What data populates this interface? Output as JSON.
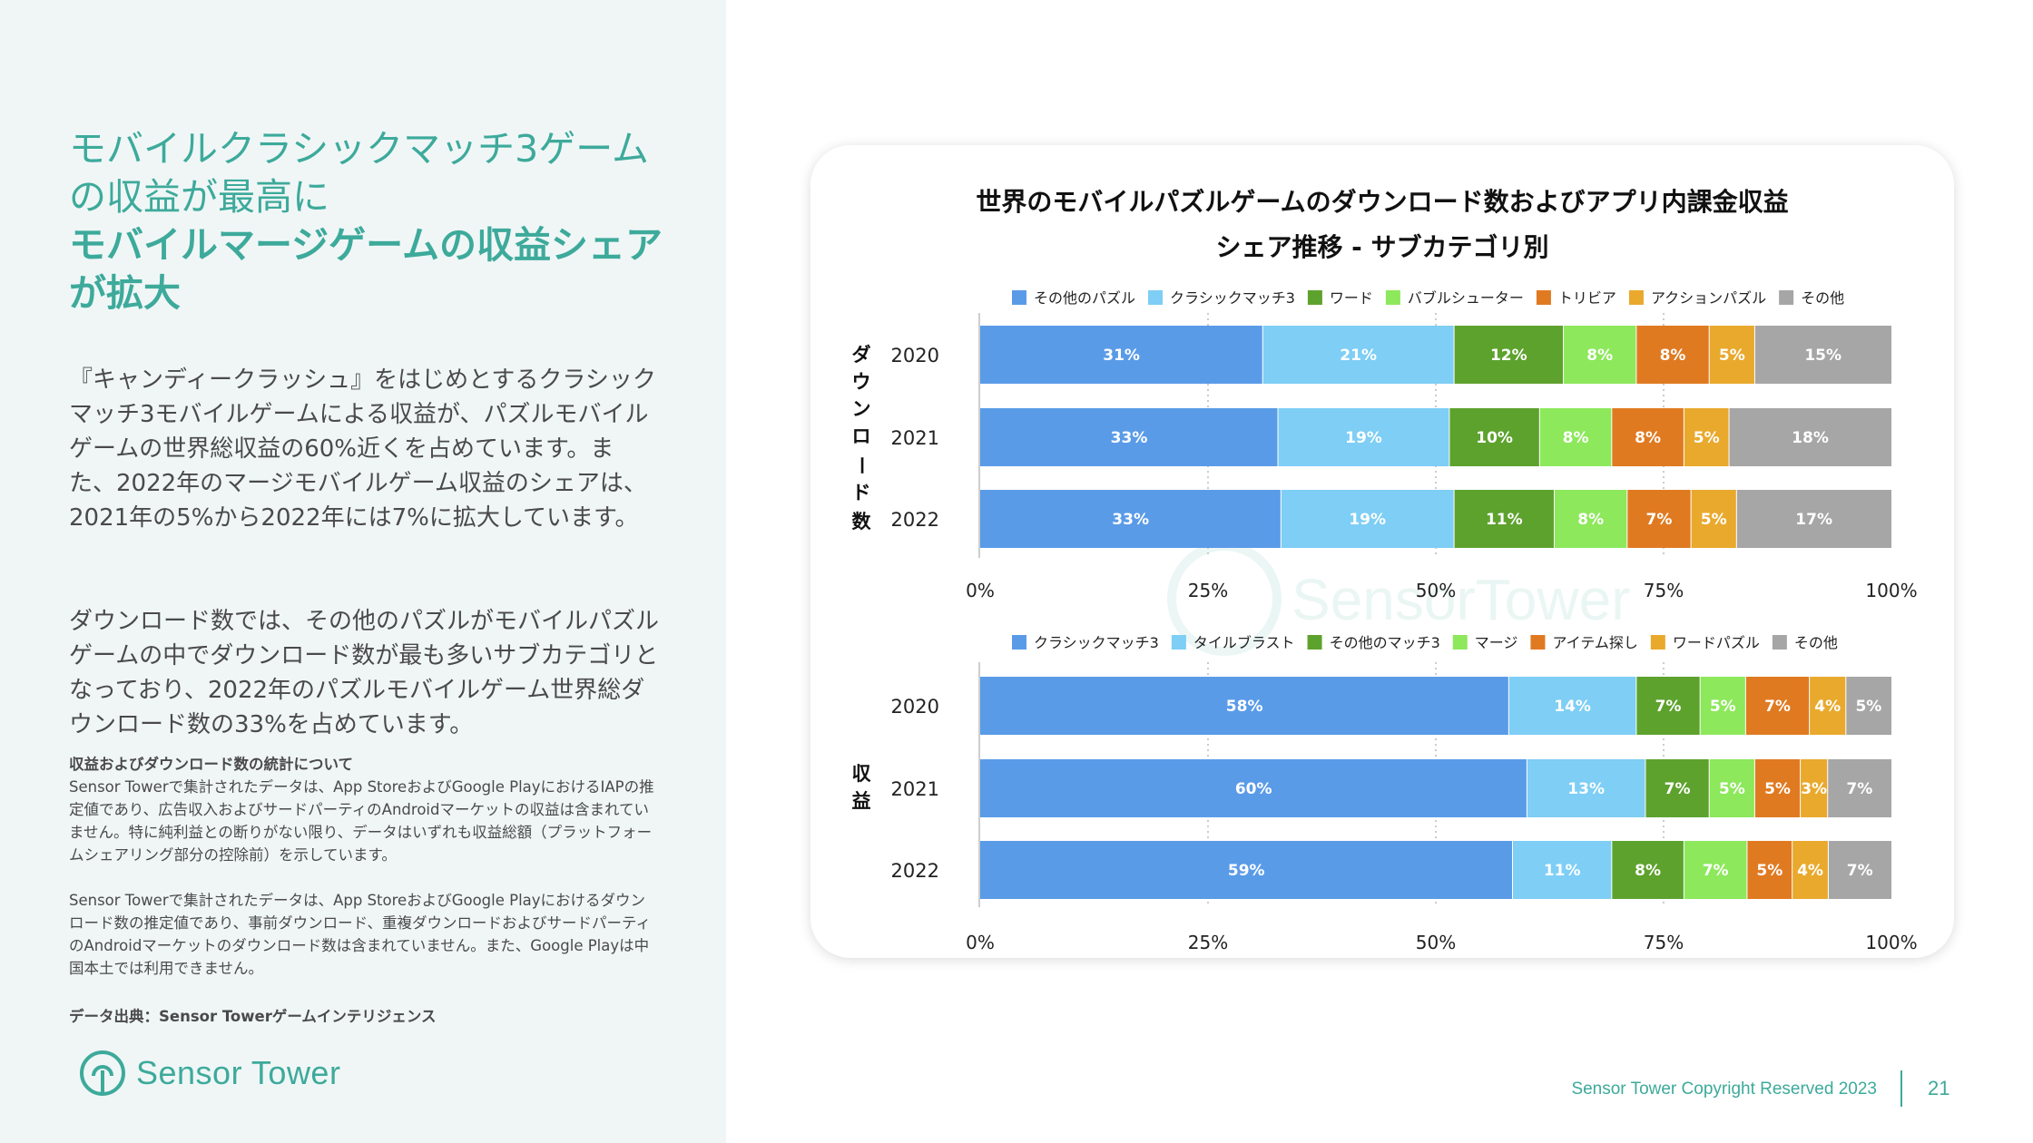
{
  "headline": {
    "line1": "モバイルクラシックマッチ3ゲーム",
    "line2": "の収益が最高に",
    "line3": "モバイルマージゲームの収益シェア",
    "line4": "が拡大"
  },
  "paragraphs": [
    "『キャンディークラッシュ』をはじめとするクラシックマッチ3モバイルゲームによる収益が、パズルモバイルゲームの世界総収益の60%近くを占めています。また、2022年のマージモバイルゲーム収益のシェアは、2021年の5%から2022年には7%に拡大しています。",
    "ダウンロード数では、その他のパズルがモバイルパズルゲームの中でダウンロード数が最も多いサブカテゴリとなっており、2022年のパズルモバイルゲーム世界総ダウンロード数の33%を占めています。"
  ],
  "notes": {
    "heading": "収益およびダウンロード数の統計について",
    "note1": "Sensor Towerで集計されたデータは、App StoreおよびGoogle PlayにおけるIAPの推定値であり、広告収入およびサードパーティのAndroidマーケットの収益は含まれていません。特に純利益との断りがない限り、データはいずれも収益総額（プラットフォームシェアリング部分の控除前）を示しています。",
    "note2": "Sensor Towerで集計されたデータは、App StoreおよびGoogle Playにおけるダウンロード数の推定値であり、事前ダウンロード、重複ダウンロードおよびサードパーティのAndroidマーケットのダウンロード数は含まれていません。また、Google Playは中国本土では利用できません。",
    "source": "データ出典：Sensor Towerゲームインテリジェンス"
  },
  "logo": {
    "text": "Sensor Tower"
  },
  "watermark": "SensorTower",
  "footer": {
    "copyright": "Sensor Tower Copyright Reserved 2023",
    "page": "21"
  },
  "colors": {
    "accent": "#3daa9b",
    "series": [
      "#5a9be8",
      "#7ecef5",
      "#5ea22e",
      "#8de85c",
      "#e07a21",
      "#e9a92d",
      "#a6a6a6"
    ]
  },
  "chart_data": [
    {
      "type": "bar",
      "orientation": "horizontal",
      "stacked": true,
      "title_line1": "世界のモバイルパズルゲームのダウンロード数およびアプリ内課金収益",
      "title_line2": "シェア推移 - サブカテゴリ別",
      "ylabel": "ダウンロード数",
      "categories": [
        "2020",
        "2021",
        "2022"
      ],
      "series": [
        {
          "name": "その他のパズル",
          "values": [
            31,
            33,
            33
          ],
          "labels": [
            "31%",
            "33%",
            "33%"
          ]
        },
        {
          "name": "クラシックマッチ3",
          "values": [
            21,
            19,
            19
          ],
          "labels": [
            "21%",
            "19%",
            "19%"
          ]
        },
        {
          "name": "ワード",
          "values": [
            12,
            10,
            11
          ],
          "labels": [
            "12%",
            "10%",
            "11%"
          ]
        },
        {
          "name": "バブルシューター",
          "values": [
            8,
            8,
            8
          ],
          "labels": [
            "8%",
            "8%",
            "8%"
          ]
        },
        {
          "name": "トリビア",
          "values": [
            8,
            8,
            7
          ],
          "labels": [
            "8%",
            "8%",
            "7%"
          ]
        },
        {
          "name": "アクションパズル",
          "values": [
            5,
            5,
            5
          ],
          "labels": [
            "5%",
            "5%",
            "5%"
          ]
        },
        {
          "name": "その他",
          "values": [
            15,
            18,
            17
          ],
          "labels": [
            "15%",
            "18%",
            "17%"
          ]
        }
      ],
      "xlim": [
        0,
        100
      ],
      "xticks": [
        "0%",
        "25%",
        "50%",
        "75%",
        "100%"
      ],
      "legend": "top"
    },
    {
      "type": "bar",
      "orientation": "horizontal",
      "stacked": true,
      "ylabel": "収益",
      "categories": [
        "2020",
        "2021",
        "2022"
      ],
      "series": [
        {
          "name": "クラシックマッチ3",
          "values": [
            58,
            60,
            59
          ],
          "labels": [
            "58%",
            "60%",
            "59%"
          ]
        },
        {
          "name": "タイルブラスト",
          "values": [
            14,
            13,
            11
          ],
          "labels": [
            "14%",
            "13%",
            "11%"
          ]
        },
        {
          "name": "その他のマッチ3",
          "values": [
            7,
            7,
            8
          ],
          "labels": [
            "7%",
            "7%",
            "8%"
          ]
        },
        {
          "name": "マージ",
          "values": [
            5,
            5,
            7
          ],
          "labels": [
            "5%",
            "5%",
            "7%"
          ]
        },
        {
          "name": "アイテム探し",
          "values": [
            7,
            5,
            5
          ],
          "labels": [
            "7%",
            "5%",
            "5%"
          ]
        },
        {
          "name": "ワードパズル",
          "values": [
            4,
            3,
            4
          ],
          "labels": [
            "4%",
            "3%",
            "4%"
          ]
        },
        {
          "name": "その他",
          "values": [
            5,
            7,
            7
          ],
          "labels": [
            "5%",
            "7%",
            "7%"
          ]
        }
      ],
      "xlim": [
        0,
        100
      ],
      "xticks": [
        "0%",
        "25%",
        "50%",
        "75%",
        "100%"
      ],
      "legend": "top"
    }
  ]
}
